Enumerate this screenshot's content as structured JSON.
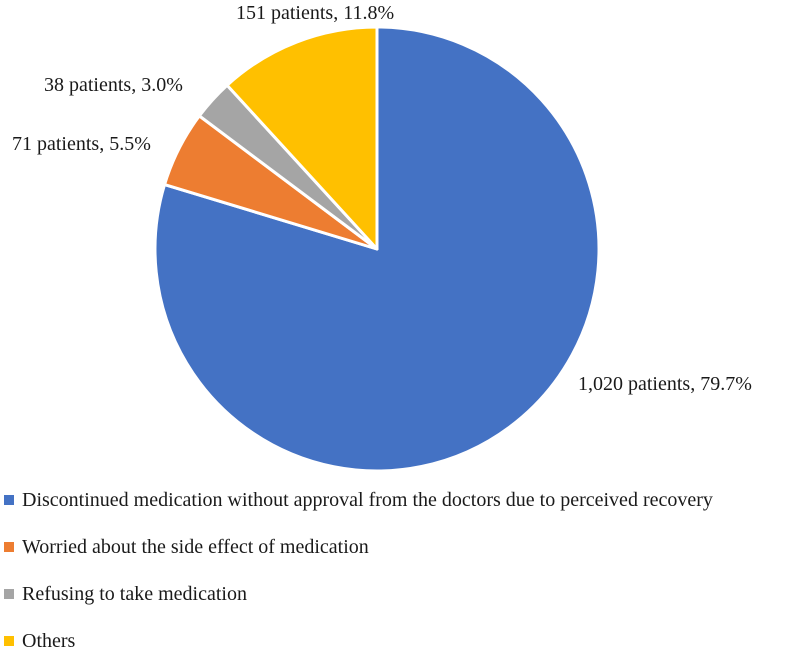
{
  "chart_data": {
    "type": "pie",
    "title": "",
    "slices": [
      {
        "label": "Discontinued medication without approval from the doctors due to perceived recovery",
        "value": 1020,
        "percent": 79.7,
        "data_label": "1,020 patients, 79.7%",
        "color": "#4472c4"
      },
      {
        "label": "Worried about the side effect of medication",
        "value": 71,
        "percent": 5.5,
        "data_label": "71 patients, 5.5%",
        "color": "#ed7d31"
      },
      {
        "label": "Refusing to take medication",
        "value": 38,
        "percent": 3.0,
        "data_label": "38 patients, 3.0%",
        "color": "#a5a5a5"
      },
      {
        "label": "Others",
        "value": 151,
        "percent": 11.8,
        "data_label": "151 patients, 11.8%",
        "color": "#ffc000"
      }
    ],
    "start_angle": "12 o'clock",
    "direction": "clockwise",
    "legend_position": "bottom"
  }
}
